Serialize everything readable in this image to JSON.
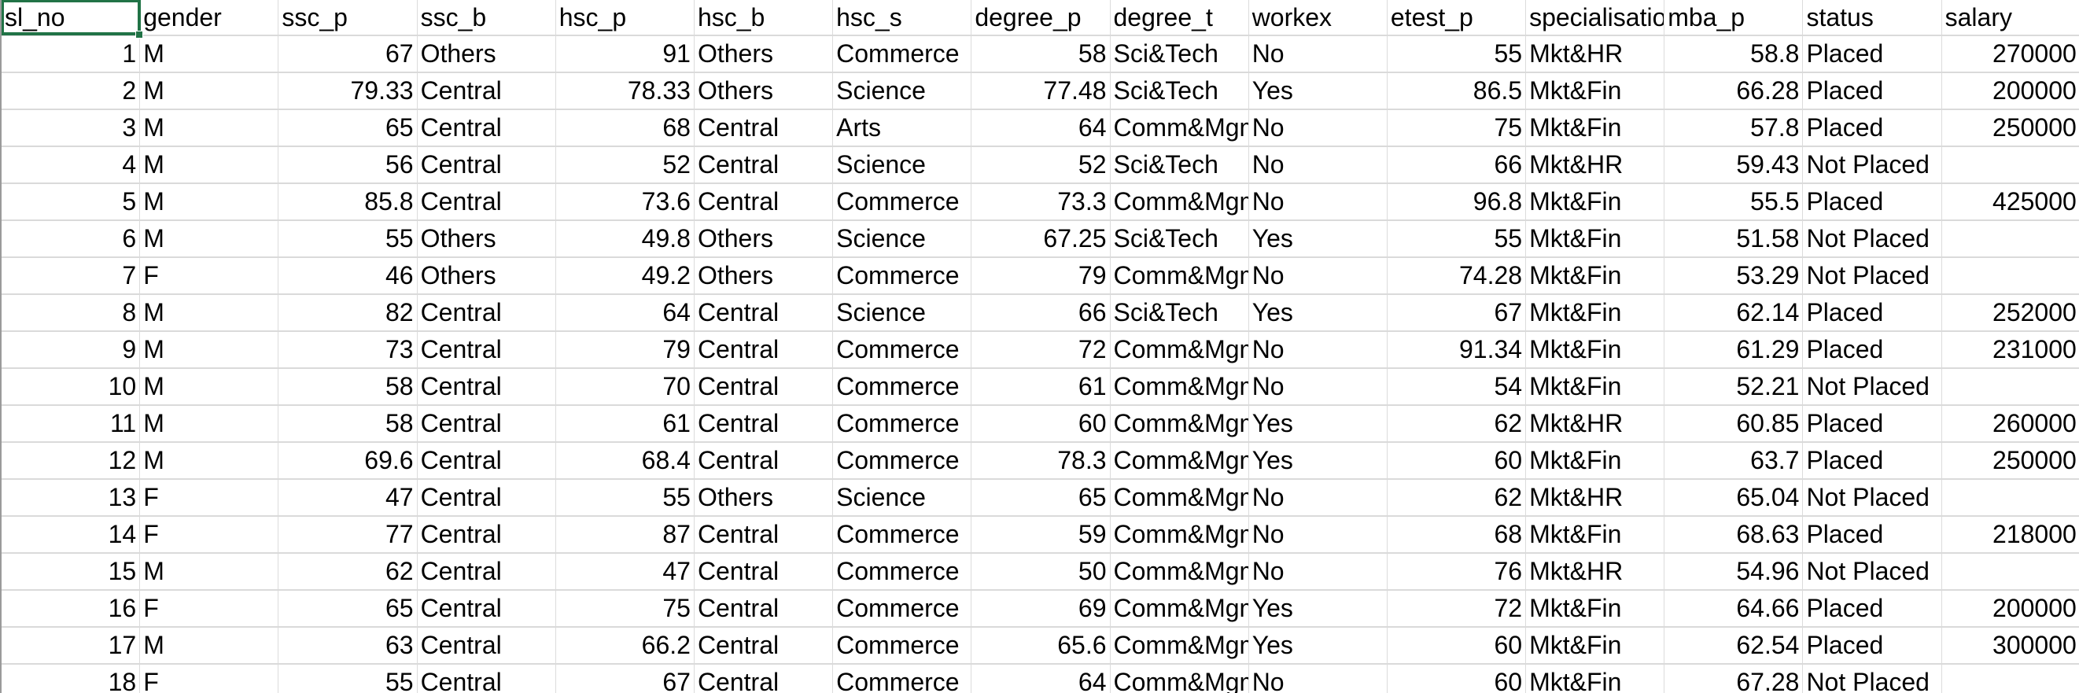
{
  "sheet": {
    "accent_color": "#217346",
    "selected_cell": "A1",
    "columns": [
      "sl_no",
      "gender",
      "ssc_p",
      "ssc_b",
      "hsc_p",
      "hsc_b",
      "hsc_s",
      "degree_p",
      "degree_t",
      "workex",
      "etest_p",
      "specialisation",
      "mba_p",
      "status",
      "salary"
    ],
    "numeric_columns": [
      0,
      2,
      4,
      7,
      10,
      12,
      14
    ],
    "rows": [
      [
        "1",
        "M",
        "67",
        "Others",
        "91",
        "Others",
        "Commerce",
        "58",
        "Sci&Tech",
        "No",
        "55",
        "Mkt&HR",
        "58.8",
        "Placed",
        "270000"
      ],
      [
        "2",
        "M",
        "79.33",
        "Central",
        "78.33",
        "Others",
        "Science",
        "77.48",
        "Sci&Tech",
        "Yes",
        "86.5",
        "Mkt&Fin",
        "66.28",
        "Placed",
        "200000"
      ],
      [
        "3",
        "M",
        "65",
        "Central",
        "68",
        "Central",
        "Arts",
        "64",
        "Comm&Mgmt",
        "No",
        "75",
        "Mkt&Fin",
        "57.8",
        "Placed",
        "250000"
      ],
      [
        "4",
        "M",
        "56",
        "Central",
        "52",
        "Central",
        "Science",
        "52",
        "Sci&Tech",
        "No",
        "66",
        "Mkt&HR",
        "59.43",
        "Not Placed",
        ""
      ],
      [
        "5",
        "M",
        "85.8",
        "Central",
        "73.6",
        "Central",
        "Commerce",
        "73.3",
        "Comm&Mgmt",
        "No",
        "96.8",
        "Mkt&Fin",
        "55.5",
        "Placed",
        "425000"
      ],
      [
        "6",
        "M",
        "55",
        "Others",
        "49.8",
        "Others",
        "Science",
        "67.25",
        "Sci&Tech",
        "Yes",
        "55",
        "Mkt&Fin",
        "51.58",
        "Not Placed",
        ""
      ],
      [
        "7",
        "F",
        "46",
        "Others",
        "49.2",
        "Others",
        "Commerce",
        "79",
        "Comm&Mgmt",
        "No",
        "74.28",
        "Mkt&Fin",
        "53.29",
        "Not Placed",
        ""
      ],
      [
        "8",
        "M",
        "82",
        "Central",
        "64",
        "Central",
        "Science",
        "66",
        "Sci&Tech",
        "Yes",
        "67",
        "Mkt&Fin",
        "62.14",
        "Placed",
        "252000"
      ],
      [
        "9",
        "M",
        "73",
        "Central",
        "79",
        "Central",
        "Commerce",
        "72",
        "Comm&Mgmt",
        "No",
        "91.34",
        "Mkt&Fin",
        "61.29",
        "Placed",
        "231000"
      ],
      [
        "10",
        "M",
        "58",
        "Central",
        "70",
        "Central",
        "Commerce",
        "61",
        "Comm&Mgmt",
        "No",
        "54",
        "Mkt&Fin",
        "52.21",
        "Not Placed",
        ""
      ],
      [
        "11",
        "M",
        "58",
        "Central",
        "61",
        "Central",
        "Commerce",
        "60",
        "Comm&Mgmt",
        "Yes",
        "62",
        "Mkt&HR",
        "60.85",
        "Placed",
        "260000"
      ],
      [
        "12",
        "M",
        "69.6",
        "Central",
        "68.4",
        "Central",
        "Commerce",
        "78.3",
        "Comm&Mgmt",
        "Yes",
        "60",
        "Mkt&Fin",
        "63.7",
        "Placed",
        "250000"
      ],
      [
        "13",
        "F",
        "47",
        "Central",
        "55",
        "Others",
        "Science",
        "65",
        "Comm&Mgmt",
        "No",
        "62",
        "Mkt&HR",
        "65.04",
        "Not Placed",
        ""
      ],
      [
        "14",
        "F",
        "77",
        "Central",
        "87",
        "Central",
        "Commerce",
        "59",
        "Comm&Mgmt",
        "No",
        "68",
        "Mkt&Fin",
        "68.63",
        "Placed",
        "218000"
      ],
      [
        "15",
        "M",
        "62",
        "Central",
        "47",
        "Central",
        "Commerce",
        "50",
        "Comm&Mgmt",
        "No",
        "76",
        "Mkt&HR",
        "54.96",
        "Not Placed",
        ""
      ],
      [
        "16",
        "F",
        "65",
        "Central",
        "75",
        "Central",
        "Commerce",
        "69",
        "Comm&Mgmt",
        "Yes",
        "72",
        "Mkt&Fin",
        "64.66",
        "Placed",
        "200000"
      ],
      [
        "17",
        "M",
        "63",
        "Central",
        "66.2",
        "Central",
        "Commerce",
        "65.6",
        "Comm&Mgmt",
        "Yes",
        "60",
        "Mkt&Fin",
        "62.54",
        "Placed",
        "300000"
      ],
      [
        "18",
        "F",
        "55",
        "Central",
        "67",
        "Central",
        "Commerce",
        "64",
        "Comm&Mgmt",
        "No",
        "60",
        "Mkt&Fin",
        "67.28",
        "Not Placed",
        ""
      ]
    ]
  }
}
